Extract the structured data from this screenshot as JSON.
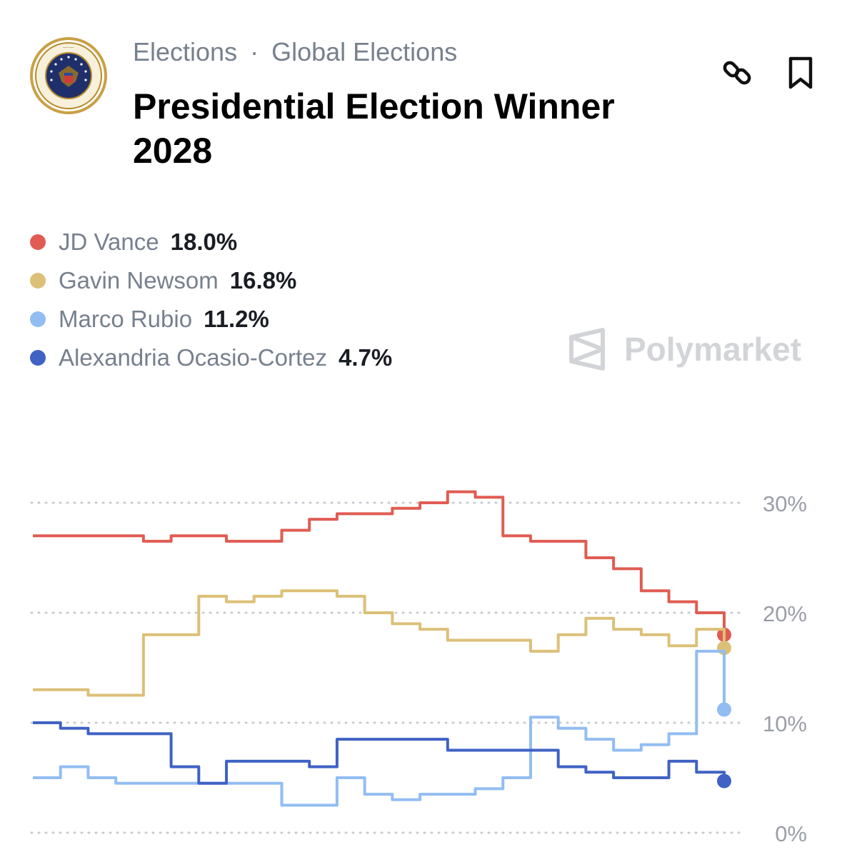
{
  "header": {
    "breadcrumb": [
      "Elections",
      "Global Elections"
    ],
    "separator": "·",
    "title": "Presidential Election Winner 2028",
    "seal_icon": "presidential-seal-icon",
    "actions": [
      {
        "name": "copy-link",
        "icon": "link-icon"
      },
      {
        "name": "bookmark",
        "icon": "bookmark-icon"
      }
    ]
  },
  "brand": {
    "name": "Polymarket",
    "icon": "polymarket-logo-icon"
  },
  "colors": {
    "vance": "#e05c52",
    "newsom": "#dcc078",
    "rubio": "#92bdf2",
    "aoc": "#3f62c4",
    "grid": "#c8ccd2",
    "axis_text": "#9a9ea6"
  },
  "chart_data": {
    "type": "line",
    "title": "Presidential Election Winner 2028",
    "xlabel": "",
    "ylabel": "",
    "ylim": [
      0,
      30
    ],
    "yticks": [
      0,
      10,
      20,
      30
    ],
    "ytick_labels": [
      "0%",
      "10%",
      "20%",
      "30%"
    ],
    "grid": true,
    "legend_position": "top-left",
    "x": [
      0,
      4,
      8,
      12,
      16,
      20,
      24,
      28,
      32,
      36,
      40,
      44,
      48,
      52,
      56,
      60,
      64,
      68,
      72,
      76,
      80,
      84,
      88,
      92,
      96,
      100
    ],
    "series": [
      {
        "name": "JD Vance",
        "color": "#e05c52",
        "current": "18.0%",
        "values": [
          27,
          27,
          27,
          27,
          26.5,
          27,
          27,
          26.5,
          26.5,
          27.5,
          28.5,
          29,
          29,
          29.5,
          30,
          31,
          30.5,
          27,
          26.5,
          26.5,
          25,
          24,
          22,
          21,
          20,
          18.0
        ]
      },
      {
        "name": "Gavin Newsom",
        "color": "#dcc078",
        "current": "16.8%",
        "values": [
          13,
          13,
          12.5,
          12.5,
          18,
          18,
          21.5,
          21,
          21.5,
          22,
          22,
          21.5,
          20,
          19,
          18.5,
          17.5,
          17.5,
          17.5,
          16.5,
          18,
          19.5,
          18.5,
          18,
          17,
          18.5,
          16.8
        ]
      },
      {
        "name": "Marco Rubio",
        "color": "#92bdf2",
        "current": "11.2%",
        "values": [
          5,
          6,
          5,
          4.5,
          4.5,
          4.5,
          4.5,
          4.5,
          4.5,
          2.5,
          2.5,
          5,
          3.5,
          3,
          3.5,
          3.5,
          4,
          5,
          10.5,
          9.5,
          8.5,
          7.5,
          8,
          9,
          16.5,
          11.2
        ]
      },
      {
        "name": "Alexandria Ocasio-Cortez",
        "color": "#3f62c4",
        "current": "4.7%",
        "values": [
          10,
          9.5,
          9,
          9,
          9,
          6,
          4.5,
          6.5,
          6.5,
          6.5,
          6,
          8.5,
          8.5,
          8.5,
          8.5,
          7.5,
          7.5,
          7.5,
          7.5,
          6,
          5.5,
          5,
          5,
          6.5,
          5.5,
          4.7
        ]
      }
    ]
  }
}
